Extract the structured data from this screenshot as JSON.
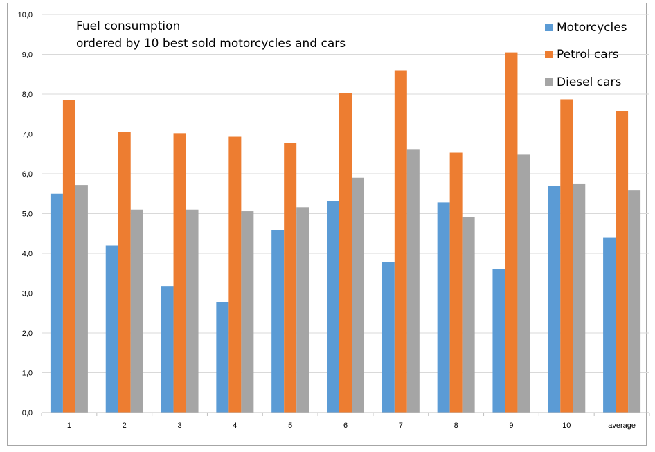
{
  "chart_data": {
    "type": "bar",
    "title_lines": [
      "Fuel  consumption",
      "ordered by 10 best sold motorcycles and cars"
    ],
    "xlabel": "",
    "ylabel": "",
    "categories": [
      "1",
      "2",
      "3",
      "4",
      "5",
      "6",
      "7",
      "8",
      "9",
      "10",
      "average"
    ],
    "series": [
      {
        "name": "Motorcycles",
        "color": "#5b9bd5",
        "values": [
          5.5,
          4.2,
          3.18,
          2.78,
          4.58,
          5.32,
          3.79,
          5.28,
          3.6,
          5.7,
          4.39
        ]
      },
      {
        "name": "Petrol cars",
        "color": "#ed7d31",
        "values": [
          7.86,
          7.05,
          7.02,
          6.93,
          6.78,
          8.03,
          8.6,
          6.53,
          9.05,
          7.87,
          7.57
        ]
      },
      {
        "name": "Diesel cars",
        "color": "#a5a5a5",
        "values": [
          5.72,
          5.1,
          5.1,
          5.06,
          5.16,
          5.9,
          6.62,
          4.92,
          6.48,
          5.74,
          5.58
        ]
      }
    ],
    "ylim": [
      0,
      10
    ],
    "yticks": [
      "0,0",
      "1,0",
      "2,0",
      "3,0",
      "4,0",
      "5,0",
      "6,0",
      "7,0",
      "8,0",
      "9,0",
      "10,0"
    ],
    "grid": true,
    "legend_position": "top-right"
  }
}
